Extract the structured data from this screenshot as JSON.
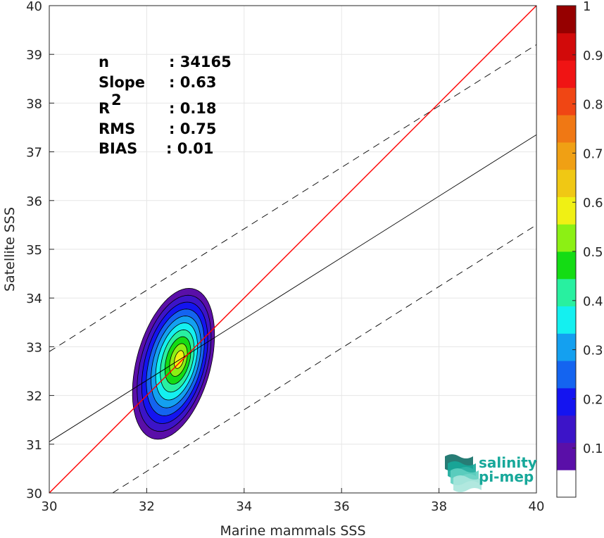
{
  "chart_data": {
    "type": "heatmap",
    "subtype": "density-contour-scatter",
    "title": "",
    "xlabel": "Marine mammals SSS",
    "ylabel": "Satellite SSS",
    "xlim": [
      30,
      40
    ],
    "ylim": [
      30,
      40
    ],
    "xticks": [
      "30",
      "32",
      "34",
      "36",
      "38",
      "40"
    ],
    "yticks": [
      "30",
      "31",
      "32",
      "33",
      "34",
      "35",
      "36",
      "37",
      "38",
      "39",
      "40"
    ],
    "grid": true,
    "stats": [
      {
        "label": "n",
        "value": ": 34165"
      },
      {
        "label": "Slope",
        "value": ": 0.63"
      },
      {
        "label": "R",
        "sup": "2",
        "value": ": 0.18"
      },
      {
        "label": "RMS",
        "value": ": 0.75"
      },
      {
        "label": "BIAS",
        "value": ": 0.01"
      }
    ],
    "lines": {
      "identity": {
        "color": "#ff0000",
        "points": [
          [
            30,
            30
          ],
          [
            40,
            40
          ]
        ]
      },
      "regression": {
        "color": "#000000",
        "style": "solid",
        "points": [
          [
            30,
            31.05
          ],
          [
            40,
            37.35
          ]
        ]
      },
      "upper_bound": {
        "color": "#000000",
        "style": "dashed",
        "points": [
          [
            30,
            32.9
          ],
          [
            40,
            39.2
          ]
        ]
      },
      "lower_bound": {
        "color": "#000000",
        "style": "dashed",
        "points": [
          [
            31.3,
            30
          ],
          [
            40,
            35.5
          ]
        ]
      }
    },
    "density_peak": {
      "x": 32.68,
      "y": 32.75
    },
    "levels": [
      0.05,
      0.15,
      0.25,
      0.35,
      0.45,
      0.55,
      0.65,
      0.75,
      0.85,
      0.95
    ],
    "colorbar": {
      "range": [
        0,
        1
      ],
      "ticks": [
        "0.1",
        "0.2",
        "0.3",
        "0.4",
        "0.5",
        "0.6",
        "0.7",
        "0.8",
        "0.9",
        "1"
      ],
      "colors": [
        "#ffffff",
        "#5a0fa8",
        "#3c14c8",
        "#1414f0",
        "#1464f0",
        "#14a0f0",
        "#14f0f0",
        "#28f0a0",
        "#14dc14",
        "#8cf014",
        "#f0f014",
        "#f0c814",
        "#f0a014",
        "#f07814",
        "#f04614",
        "#f01414",
        "#d20a0a",
        "#960000"
      ]
    },
    "logo": {
      "line1": "salinity",
      "line2": "pi-mep"
    }
  }
}
